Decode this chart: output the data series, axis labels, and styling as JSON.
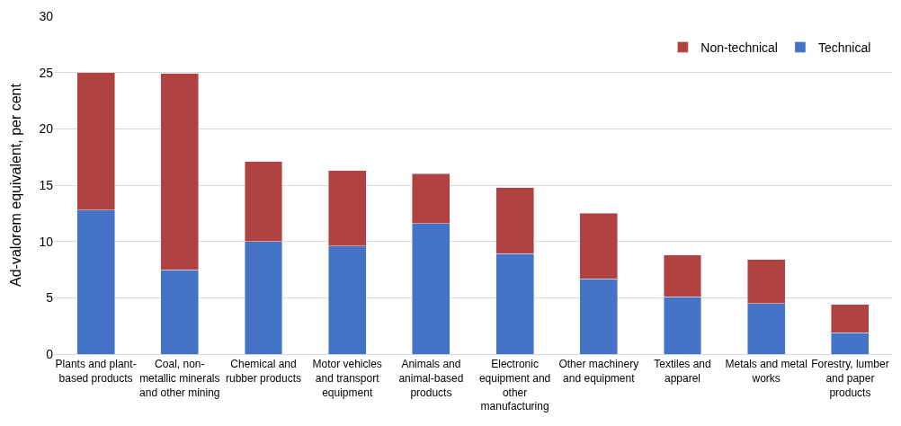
{
  "chart_data": {
    "type": "bar",
    "stacked": true,
    "ylabel": "Ad-valorem equivalent, per cent",
    "categories": [
      "Plants and plant-based products",
      "Coal, non-metallic minerals and other mining",
      "Chemical and rubber products",
      "Motor vehicles and transport equipment",
      "Animals and animal-based products",
      "Electronic equipment and other manufacturing",
      "Other machinery and equipment",
      "Textiles and apparel",
      "Metals and metal works",
      "Forestry, lumber and paper products"
    ],
    "series": [
      {
        "name": "Technical",
        "color": "#4472c4",
        "values": [
          12.8,
          7.5,
          10.0,
          9.6,
          11.6,
          8.9,
          6.7,
          5.1,
          4.5,
          1.9
        ]
      },
      {
        "name": "Non-technical",
        "color": "#b04242",
        "values": [
          12.2,
          17.4,
          7.1,
          6.7,
          4.4,
          5.9,
          5.8,
          3.7,
          3.9,
          2.5
        ]
      }
    ],
    "ylim": [
      0,
      30
    ],
    "yticks": [
      0,
      5,
      10,
      15,
      20,
      25,
      30
    ],
    "grid": "y",
    "legend": "top right"
  }
}
